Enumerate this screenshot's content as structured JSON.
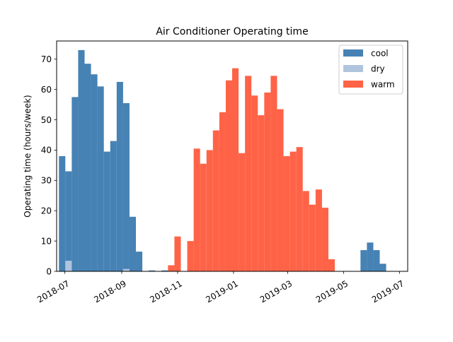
{
  "chart_data": {
    "type": "bar",
    "title": "Air Conditioner Operating time",
    "ylabel": "Operating time (hours/week)",
    "xlabel": "",
    "ylim": [
      0,
      76
    ],
    "x_range": [
      "2018-06-22",
      "2019-07-10"
    ],
    "yticks": [
      0,
      10,
      20,
      30,
      40,
      50,
      60,
      70
    ],
    "xticks": [
      {
        "date": "2018-07-01",
        "label": "2018-07"
      },
      {
        "date": "2018-09-01",
        "label": "2018-09"
      },
      {
        "date": "2018-11-01",
        "label": "2018-11"
      },
      {
        "date": "2019-01-01",
        "label": "2019-01"
      },
      {
        "date": "2019-03-01",
        "label": "2019-03"
      },
      {
        "date": "2019-05-01",
        "label": "2019-05"
      },
      {
        "date": "2019-07-01",
        "label": "2019-07"
      }
    ],
    "bar_width_days": 7,
    "legend_location": "upper right",
    "grid": false,
    "series": [
      {
        "name": "cool",
        "color": "#4682b4",
        "points": [
          {
            "week": "2018-06-28",
            "value": 38
          },
          {
            "week": "2018-07-05",
            "value": 33
          },
          {
            "week": "2018-07-12",
            "value": 57.5
          },
          {
            "week": "2018-07-19",
            "value": 73
          },
          {
            "week": "2018-07-26",
            "value": 68.5
          },
          {
            "week": "2018-08-02",
            "value": 65
          },
          {
            "week": "2018-08-09",
            "value": 61
          },
          {
            "week": "2018-08-16",
            "value": 39.5
          },
          {
            "week": "2018-08-23",
            "value": 43
          },
          {
            "week": "2018-08-30",
            "value": 62.5
          },
          {
            "week": "2018-09-06",
            "value": 55.5
          },
          {
            "week": "2018-09-13",
            "value": 18
          },
          {
            "week": "2018-09-20",
            "value": 6.5
          },
          {
            "week": "2018-10-04",
            "value": 0.3
          },
          {
            "week": "2018-10-18",
            "value": 0.3
          },
          {
            "week": "2019-05-23",
            "value": 7
          },
          {
            "week": "2019-05-30",
            "value": 9.5
          },
          {
            "week": "2019-06-06",
            "value": 7
          },
          {
            "week": "2019-06-13",
            "value": 2.5
          }
        ]
      },
      {
        "name": "dry",
        "color": "#b0c4de",
        "points": [
          {
            "week": "2018-07-05",
            "value": 3.5
          },
          {
            "week": "2018-09-06",
            "value": 0.8
          }
        ]
      },
      {
        "name": "warm",
        "color": "#ff6347",
        "points": [
          {
            "week": "2018-10-25",
            "value": 2
          },
          {
            "week": "2018-11-01",
            "value": 11.5
          },
          {
            "week": "2018-11-15",
            "value": 10
          },
          {
            "week": "2018-11-22",
            "value": 40.5
          },
          {
            "week": "2018-11-29",
            "value": 35.5
          },
          {
            "week": "2018-12-06",
            "value": 40
          },
          {
            "week": "2018-12-13",
            "value": 46.5
          },
          {
            "week": "2018-12-20",
            "value": 52.5
          },
          {
            "week": "2018-12-27",
            "value": 63
          },
          {
            "week": "2019-01-03",
            "value": 67
          },
          {
            "week": "2019-01-10",
            "value": 39
          },
          {
            "week": "2019-01-17",
            "value": 64.5
          },
          {
            "week": "2019-01-24",
            "value": 58
          },
          {
            "week": "2019-01-31",
            "value": 51.5
          },
          {
            "week": "2019-02-07",
            "value": 59
          },
          {
            "week": "2019-02-14",
            "value": 64.5
          },
          {
            "week": "2019-02-21",
            "value": 53.5
          },
          {
            "week": "2019-02-28",
            "value": 38
          },
          {
            "week": "2019-03-07",
            "value": 39.5
          },
          {
            "week": "2019-03-14",
            "value": 41
          },
          {
            "week": "2019-03-21",
            "value": 26.5
          },
          {
            "week": "2019-03-28",
            "value": 22
          },
          {
            "week": "2019-04-04",
            "value": 27
          },
          {
            "week": "2019-04-11",
            "value": 21
          },
          {
            "week": "2019-04-18",
            "value": 4
          }
        ]
      }
    ]
  }
}
